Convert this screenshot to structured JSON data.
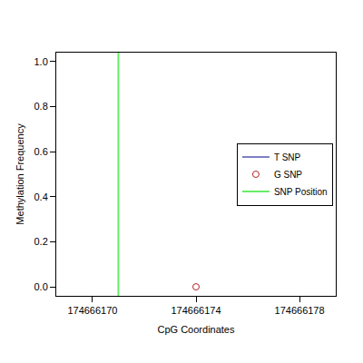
{
  "chart_data": {
    "type": "scatter",
    "x_label": "CpG Coordinates",
    "y_label": "Methylation Frequency",
    "series": [
      {
        "name": "T SNP",
        "color": "#00008b",
        "x": [],
        "values": []
      },
      {
        "name": "G SNP",
        "color": "#b22222",
        "x": [
          174666174
        ],
        "values": [
          0
        ],
        "marker": "open circle"
      }
    ],
    "snp_position": {
      "name": "SNP Position",
      "x": 174666171,
      "color": "#66ee66"
    },
    "xlim": [
      174666168.6,
      174666179.4
    ],
    "xticks": [
      174666170,
      174666174,
      174666178
    ],
    "ylim": [
      -0.04,
      1.04
    ],
    "yticks": [
      {
        "value": 0,
        "label": "0.0"
      },
      {
        "value": 0.2,
        "label": "0.2"
      },
      {
        "value": 0.4,
        "label": "0.4"
      },
      {
        "value": 0.6,
        "label": "0.6"
      },
      {
        "value": 0.8,
        "label": "0.8"
      },
      {
        "value": 1,
        "label": "1.0"
      }
    ],
    "legend": "right",
    "grid": false
  }
}
